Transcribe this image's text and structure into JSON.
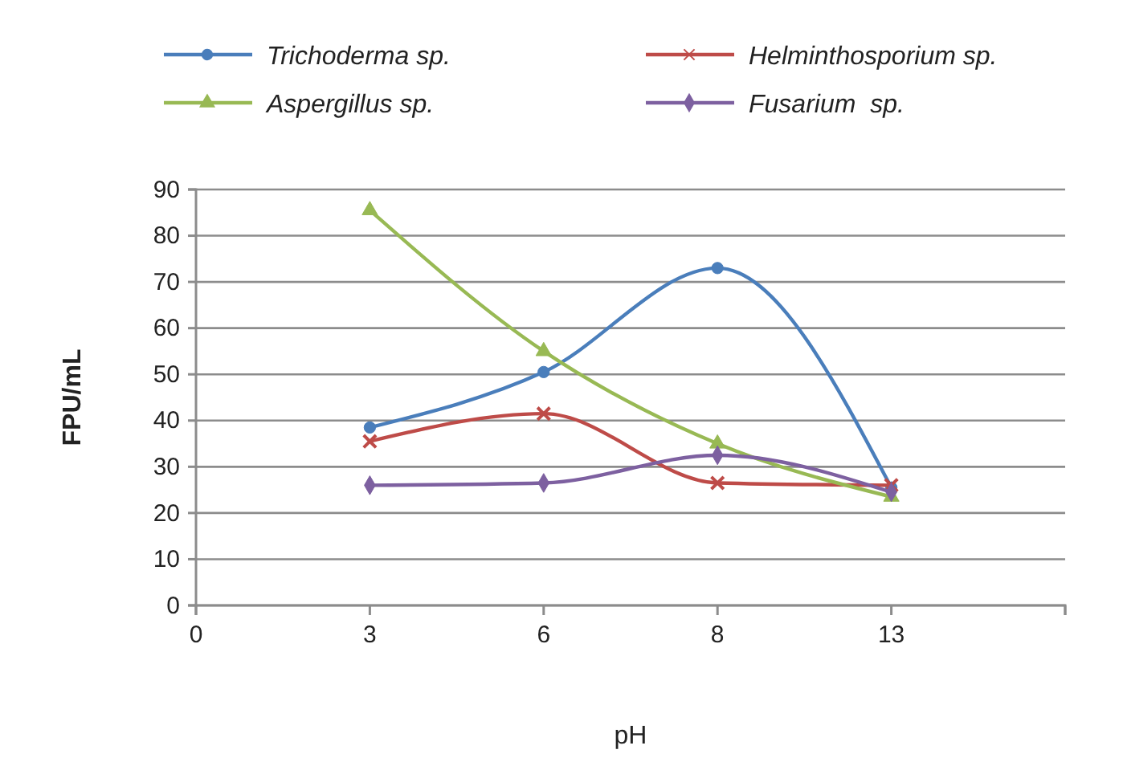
{
  "chart_data": {
    "type": "line",
    "xlabel": "pH",
    "ylabel": "FPU/mL",
    "categories": [
      "0",
      "3",
      "6",
      "8",
      "13",
      null
    ],
    "series": [
      {
        "name": "Trichoderma sp.",
        "color": "#4a7ebb",
        "marker": "circle",
        "values": [
          null,
          38.5,
          50.5,
          73,
          25.5,
          null
        ]
      },
      {
        "name": "Helminthosporium sp.",
        "color": "#be4b48",
        "marker": "cross",
        "values": [
          null,
          35.5,
          41.5,
          26.5,
          26,
          null
        ]
      },
      {
        "name": "Aspergillus sp.",
        "color": "#98b954",
        "marker": "triangle",
        "values": [
          null,
          85.5,
          55,
          35,
          23.5,
          null
        ]
      },
      {
        "name": "Fusarium  sp.",
        "color": "#7d60a0",
        "marker": "diamond",
        "values": [
          null,
          26,
          26.5,
          32.5,
          24.5,
          null
        ]
      }
    ],
    "ylim": [
      0,
      90
    ],
    "yticks": [
      0,
      10,
      20,
      30,
      40,
      50,
      60,
      70,
      80,
      90
    ],
    "grid": "y",
    "legend": "top",
    "line_style": "solid"
  }
}
